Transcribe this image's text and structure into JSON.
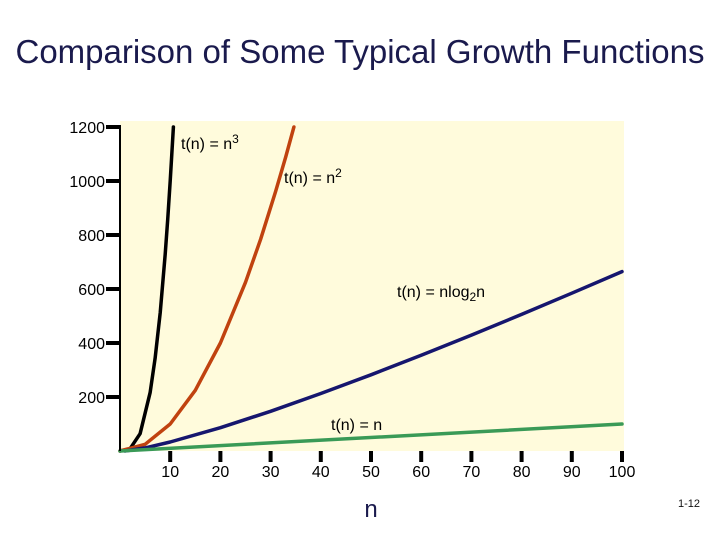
{
  "slide": {
    "title": "Comparison of Some Typical Growth Functions",
    "number": "1-12"
  },
  "chart_data": {
    "type": "line",
    "title": "Comparison of Some Typical Growth Functions",
    "xlabel": "n",
    "ylabel": "",
    "xlim": [
      0,
      100
    ],
    "ylim": [
      0,
      1200
    ],
    "x_ticks": [
      10,
      20,
      30,
      40,
      50,
      60,
      70,
      80,
      90,
      100
    ],
    "y_ticks": [
      200,
      400,
      600,
      800,
      1000,
      1200
    ],
    "grid": false,
    "legend": "none",
    "colors": {
      "plot_background": "#fffbdc",
      "n": "#3a9a57",
      "nlog2n": "#16166e",
      "n2": "#c0420f",
      "n3": "#000000",
      "axis": "#000000"
    },
    "series": [
      {
        "key": "n3",
        "label_main": "t(n) = n",
        "label_sup": "3",
        "label_post": "",
        "x": [
          0,
          2,
          4,
          6,
          7,
          8,
          9,
          9.5,
          10,
          10.3,
          10.63
        ],
        "y": [
          0,
          8,
          64,
          216,
          343,
          512,
          729,
          857,
          1000,
          1093,
          1200
        ]
      },
      {
        "key": "n2",
        "label_main": "t(n) = n",
        "label_sup": "2",
        "label_post": "",
        "x": [
          0,
          5,
          10,
          15,
          20,
          25,
          28,
          31,
          33,
          34.64
        ],
        "y": [
          0,
          25,
          100,
          225,
          400,
          625,
          784,
          961,
          1089,
          1200
        ]
      },
      {
        "key": "nlog2n",
        "label_main": "t(n) = nlog",
        "label_sub": "2",
        "label_post": "n",
        "x": [
          1,
          5,
          10,
          20,
          30,
          40,
          50,
          60,
          70,
          80,
          90,
          100
        ],
        "y": [
          0,
          11.6,
          33.2,
          86.4,
          147.2,
          212.9,
          282.2,
          354.4,
          429.1,
          505.8,
          584.3,
          664.4
        ]
      },
      {
        "key": "n",
        "label_main": "t(n) = n",
        "label_post": "",
        "x": [
          0,
          100
        ],
        "y": [
          0,
          100
        ]
      }
    ]
  }
}
